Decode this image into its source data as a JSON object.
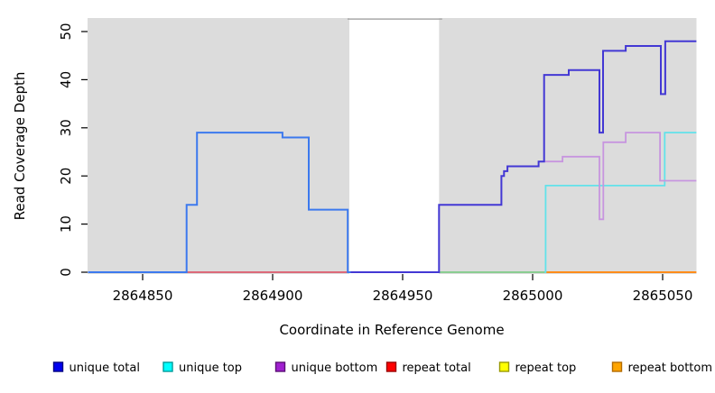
{
  "chart_data": {
    "type": "step-line",
    "title": "",
    "xlabel": "Coordinate in Reference Genome",
    "ylabel": "Read Coverage Depth",
    "x_ticks": [
      2864850,
      2864900,
      2864950,
      2865000,
      2865050
    ],
    "y_ticks": [
      0,
      10,
      20,
      30,
      40,
      50
    ],
    "x_range": [
      2864829,
      2865063
    ],
    "y_range": [
      0,
      52.8
    ],
    "grid": "off",
    "plot_bg_color": "#dcdcdc",
    "gap_region": {
      "start": 2864929.5,
      "end": 2864964,
      "color": "#ffffff",
      "top_line_color": "#a9a9a9",
      "top_line_value": 52.6
    },
    "series": [
      {
        "name": "repeat-total-baseline",
        "legend": "repeat total",
        "color": "#dc4358",
        "width": 1.6,
        "steps": [
          [
            2864867,
            0
          ]
        ],
        "end": 2864929.5
      },
      {
        "name": "green-baseline",
        "legend": "",
        "color": "#6ec87a",
        "width": 1.6,
        "steps": [
          [
            2864964,
            0
          ]
        ],
        "end": 2865005
      },
      {
        "name": "repeat-bottom-baseline",
        "legend": "repeat bottom",
        "color": "#ff8c1a",
        "width": 2,
        "steps": [
          [
            2865005,
            0
          ]
        ],
        "end": 2865063
      },
      {
        "name": "unique-top",
        "legend": "unique top",
        "color": "#62e2ea",
        "width": 1.8,
        "steps": [
          [
            2865004.6,
            0
          ],
          [
            2865005,
            18
          ],
          [
            2865050.8,
            29
          ]
        ],
        "end": 2865063
      },
      {
        "name": "unique-bottom",
        "legend": "unique bottom",
        "color": "#c795df",
        "width": 1.8,
        "steps": [
          [
            2865004.5,
            23
          ],
          [
            2865011.5,
            24
          ],
          [
            2865025.7,
            11
          ],
          [
            2865027.2,
            27
          ],
          [
            2865035.8,
            29
          ],
          [
            2865049,
            19
          ]
        ],
        "end": 2865063
      },
      {
        "name": "unique-total-right",
        "legend": "unique total",
        "color": "#4338d4",
        "width": 2,
        "steps": [
          [
            2864929.5,
            0
          ],
          [
            2864964,
            14
          ],
          [
            2864988,
            20
          ],
          [
            2864989,
            21
          ],
          [
            2864990.3,
            22
          ],
          [
            2865002.3,
            23
          ],
          [
            2865004.4,
            41
          ],
          [
            2865013.9,
            42
          ],
          [
            2865025.7,
            29
          ],
          [
            2865027.1,
            46
          ],
          [
            2865035.8,
            47
          ],
          [
            2865049.3,
            37
          ],
          [
            2865051,
            48
          ]
        ],
        "end": 2865063
      },
      {
        "name": "unique-total-left",
        "legend": "unique total",
        "color": "#3c79ee",
        "width": 2,
        "steps": [
          [
            2864829,
            0
          ],
          [
            2864866.9,
            14
          ],
          [
            2864870.9,
            29
          ],
          [
            2864903.8,
            28
          ],
          [
            2864913.9,
            13
          ],
          [
            2864928.9,
            0
          ]
        ],
        "end": 2864930
      }
    ],
    "legend_position": "bottom",
    "legend": [
      {
        "label": "unique total",
        "fill": "#0000f0",
        "border": "#000080"
      },
      {
        "label": "unique top",
        "fill": "#00ffff",
        "border": "#009999"
      },
      {
        "label": "unique bottom",
        "fill": "#a020d0",
        "border": "#5c1076"
      },
      {
        "label": "repeat total",
        "fill": "#ff0000",
        "border": "#990000"
      },
      {
        "label": "repeat top",
        "fill": "#ffff00",
        "border": "#999900"
      },
      {
        "label": "repeat bottom",
        "fill": "#ffa500",
        "border": "#b36b00"
      }
    ]
  }
}
